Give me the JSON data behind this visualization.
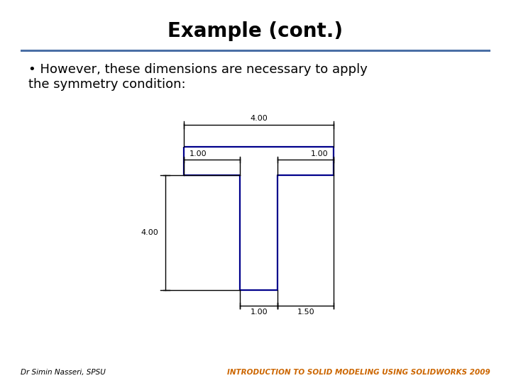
{
  "title": "Example (cont.)",
  "title_fontsize": 20,
  "title_fontweight": "bold",
  "bullet_text": "However, these dimensions are necessary to apply\nthe symmetry condition:",
  "bullet_fontsize": 13,
  "separator_color": "#4a6fa5",
  "footer_left": "Dr Simin Nasseri, SPSU",
  "footer_right": "INTRODUCTION TO SOLID MODELING USING SOLIDWORKS 2009",
  "footer_color_left": "#000000",
  "footer_color_right": "#cc6600",
  "shape_color": "#00008b",
  "shape_linewidth": 1.6,
  "dim_color": "#000000",
  "dim_linewidth": 1.0,
  "background": "#ffffff",
  "shape_x": [
    0.0,
    4.0,
    4.0,
    2.5,
    2.5,
    1.5,
    1.5,
    0.0,
    0.0
  ],
  "shape_y": [
    1.0,
    1.0,
    0.0,
    0.0,
    -4.0,
    -4.0,
    0.0,
    0.0,
    1.0
  ],
  "xmin": -1.5,
  "xmax": 6.0,
  "ymin": -5.5,
  "ymax": 2.5
}
